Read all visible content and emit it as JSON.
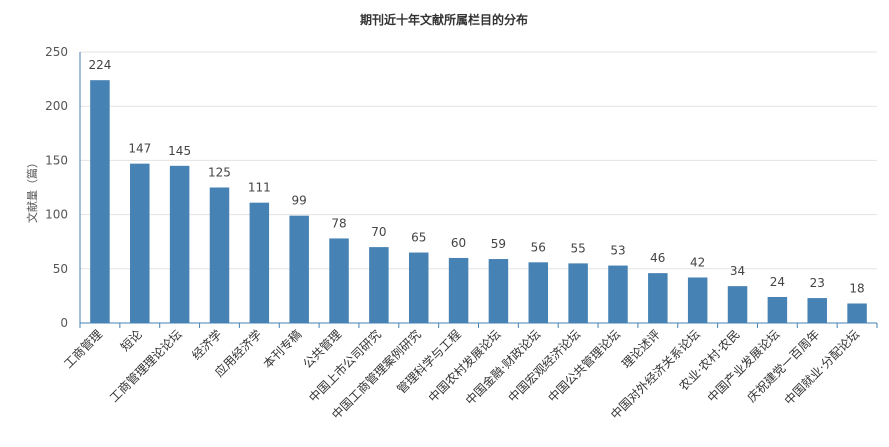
{
  "chart_data": {
    "type": "bar",
    "title": "期刊近十年文献所属栏目的分布",
    "xlabel": "",
    "ylabel": "文献量（篇）",
    "ylim": [
      0,
      250
    ],
    "yticks": [
      0,
      50,
      100,
      150,
      200,
      250
    ],
    "grid": true,
    "bar_color": "#4682b4",
    "categories": [
      "工商管理",
      "短论",
      "工商管理理论论坛",
      "经济学",
      "应用经济学",
      "本刊专稿",
      "公共管理",
      "中国上市公司研究",
      "中国工商管理案例研究",
      "管理科学与工程",
      "中国农村发展论坛",
      "中国金融·财政论坛",
      "中国宏观经济论坛",
      "中国公共管理论坛",
      "理论述评",
      "中国对外经济关系论坛",
      "农业·农村·农民",
      "中国产业发展论坛",
      "庆祝建党一百周年",
      "中国就业·分配论坛"
    ],
    "values": [
      224,
      147,
      145,
      125,
      111,
      99,
      78,
      70,
      65,
      60,
      59,
      56,
      55,
      53,
      46,
      42,
      34,
      24,
      23,
      18
    ]
  }
}
